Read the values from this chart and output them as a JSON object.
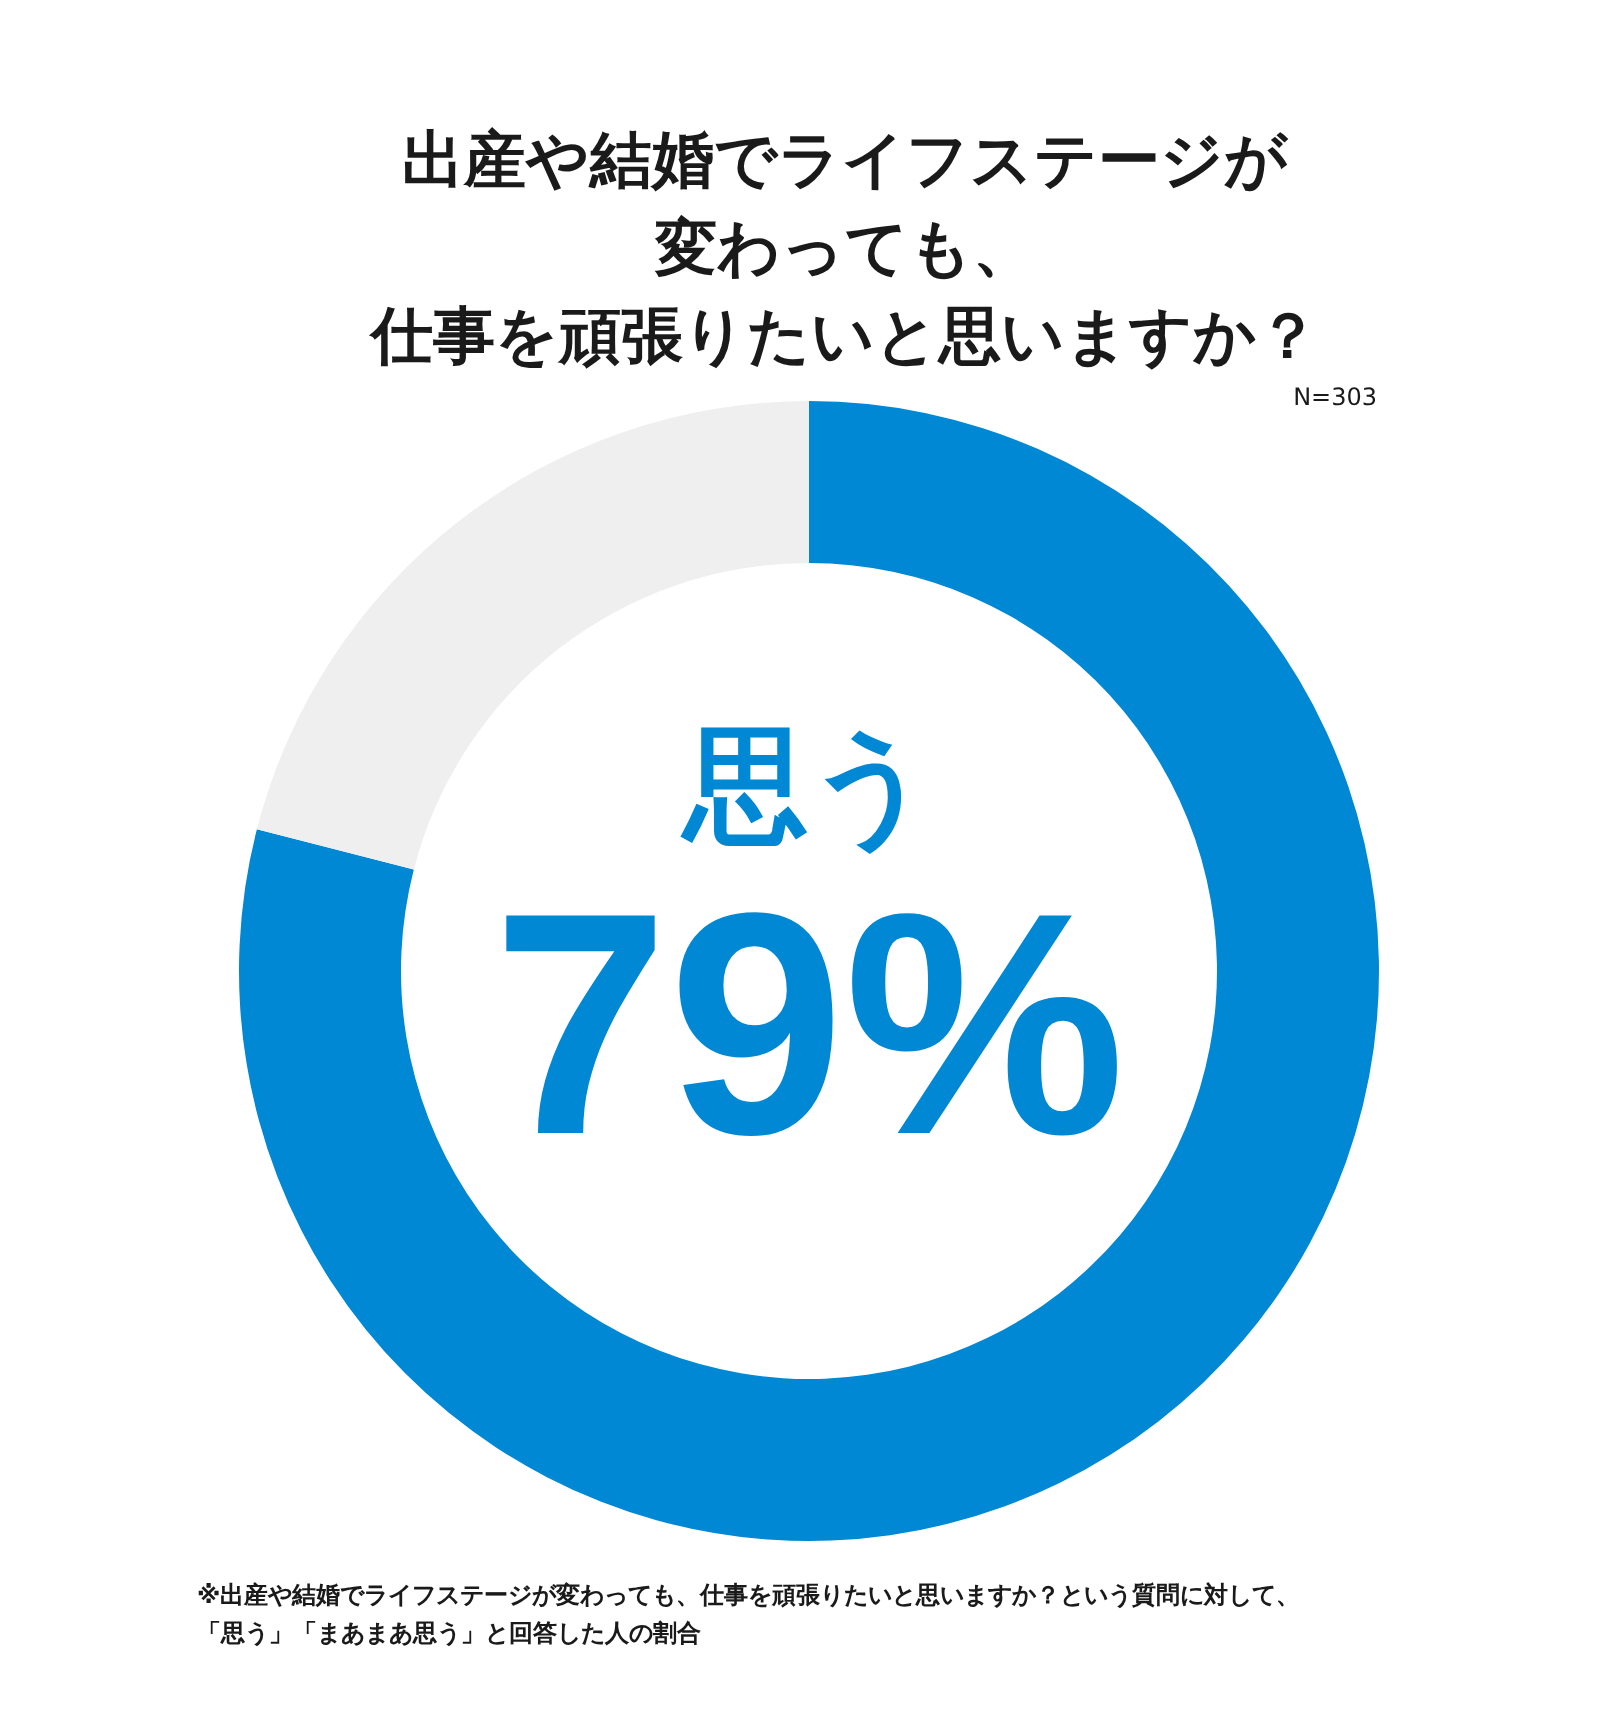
{
  "chart_data": {
    "type": "donut",
    "title": "出産や結婚でライフステージが変わっても、仕事を頑張りたいと思いますか？",
    "categories": [
      "思う",
      null
    ],
    "values": [
      79,
      21
    ],
    "colors": [
      "#0088d4",
      "#efefef"
    ],
    "value_labels": [
      "79%",
      null
    ],
    "annotations": [
      "N=303",
      "※出産や結婚でライフステージが変わっても、仕事を頑張りたいと思いますか？という質問に対して、「思う」「まあまあ思う」と回答した人の割合"
    ]
  }
}
